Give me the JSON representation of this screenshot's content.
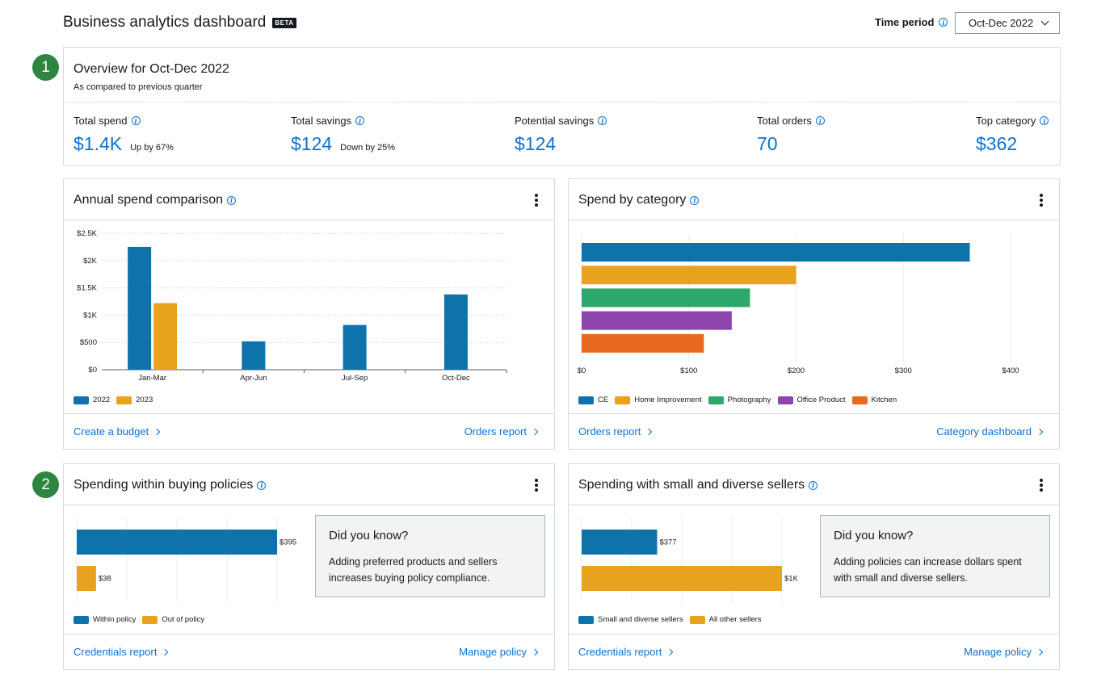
{
  "header": {
    "title": "Business analytics dashboard",
    "beta": "BETA",
    "time_period_label": "Time period",
    "time_period_value": "Oct-Dec 2022"
  },
  "steps": [
    "1",
    "2"
  ],
  "overview": {
    "title": "Overview for Oct-Dec 2022",
    "subtitle": "As compared to previous quarter",
    "metrics": [
      {
        "label": "Total spend",
        "value": "$1.4K",
        "change": "Up by 67%"
      },
      {
        "label": "Total savings",
        "value": "$124",
        "change": "Down by 25%"
      },
      {
        "label": "Potential savings",
        "value": "$124",
        "change": ""
      },
      {
        "label": "Total orders",
        "value": "70",
        "change": ""
      },
      {
        "label": "Top category",
        "value": "$362",
        "change": ""
      }
    ]
  },
  "annual": {
    "title": "Annual spend comparison",
    "footer_left": "Create a budget",
    "footer_right": "Orders report"
  },
  "category": {
    "title": "Spend by category",
    "footer_left": "Orders report",
    "footer_right": "Category dashboard"
  },
  "policy": {
    "title": "Spending within buying policies",
    "dyk_title": "Did you know?",
    "dyk_text": "Adding preferred products and sellers increases buying policy compliance.",
    "footer_left": "Credentials report",
    "footer_right": "Manage policy"
  },
  "sellers": {
    "title": "Spending with small and diverse sellers",
    "dyk_title": "Did you know?",
    "dyk_text": "Adding policies can increase dollars spent with small and diverse sellers.",
    "footer_left": "Credentials report",
    "footer_right": "Manage policy"
  },
  "chart_data": [
    {
      "type": "bar",
      "categories": [
        "Jan-Mar",
        "Apr-Jun",
        "Jul-Sep",
        "Oct-Dec"
      ],
      "series": [
        {
          "name": "2022",
          "values": [
            2250,
            520,
            820,
            1380
          ],
          "color": "#0f73ab"
        },
        {
          "name": "2023",
          "values": [
            1220,
            null,
            null,
            null
          ],
          "color": "#e8a21d"
        }
      ],
      "ylim": [
        0,
        2500
      ],
      "yticks": [
        "$0",
        "$500",
        "$1K",
        "$1.5K",
        "$2K",
        "$2.5K"
      ],
      "grid": true,
      "legend": "bottom-left"
    },
    {
      "type": "bar",
      "orientation": "horizontal",
      "categories": [
        "CE",
        "Home Improvement",
        "Photography",
        "Office Product",
        "Kitchen"
      ],
      "values": [
        362,
        200,
        157,
        140,
        114
      ],
      "colors": [
        "#0f73ab",
        "#e8a21d",
        "#2ea76a",
        "#8e44ad",
        "#e8691f"
      ],
      "xlim": [
        0,
        400
      ],
      "xticks": [
        "$0",
        "$100",
        "$200",
        "$300",
        "$400"
      ],
      "grid": true,
      "legend": "bottom-left"
    },
    {
      "type": "bar",
      "orientation": "horizontal",
      "categories": [
        "Within policy",
        "Out of policy"
      ],
      "values": [
        395,
        38
      ],
      "value_labels": [
        "$395",
        "$38"
      ],
      "colors": [
        "#0f73ab",
        "#e8a21d"
      ],
      "legend": "bottom-left"
    },
    {
      "type": "bar",
      "orientation": "horizontal",
      "categories": [
        "Small and diverse sellers",
        "All other sellers"
      ],
      "values": [
        377,
        1000
      ],
      "value_labels": [
        "$377",
        "$1K"
      ],
      "colors": [
        "#0f73ab",
        "#e8a21d"
      ],
      "legend": "bottom-left"
    }
  ]
}
